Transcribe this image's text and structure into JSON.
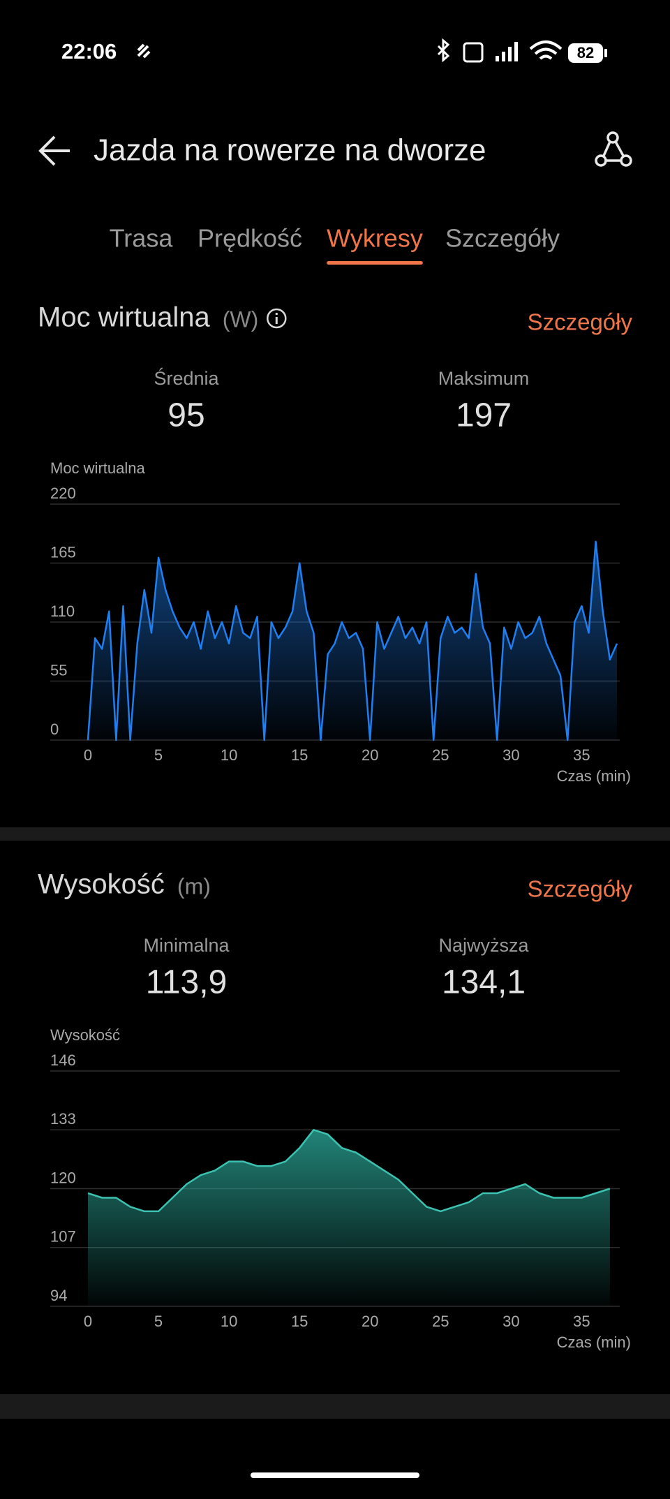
{
  "status_bar": {
    "time": "22:06",
    "battery": "82"
  },
  "header": {
    "title": "Jazda na rowerze na dworze"
  },
  "tabs": [
    "Trasa",
    "Prędkość",
    "Wykresy",
    "Szczegóły"
  ],
  "active_tab": 2,
  "sections": [
    {
      "title": "Moc wirtualna",
      "unit": "(W)",
      "link": "Szczegóły",
      "stats": [
        {
          "label": "Średnia",
          "value": "95"
        },
        {
          "label": "Maksimum",
          "value": "197"
        }
      ],
      "chart": {
        "type": "area",
        "ylabel": "Moc wirtualna",
        "xlabel": "Czas (min)",
        "color": "#1f7ff0",
        "x": [
          0,
          0.5,
          1,
          1.5,
          2,
          2.5,
          3,
          3.5,
          4,
          4.5,
          5,
          5.5,
          6,
          6.5,
          7,
          7.5,
          8,
          8.5,
          9,
          9.5,
          10,
          10.5,
          11,
          11.5,
          12,
          12.5,
          13,
          13.5,
          14,
          14.5,
          15,
          15.5,
          16,
          16.5,
          17,
          17.5,
          18,
          18.5,
          19,
          19.5,
          20,
          20.5,
          21,
          21.5,
          22,
          22.5,
          23,
          23.5,
          24,
          24.5,
          25,
          25.5,
          26,
          26.5,
          27,
          27.5,
          28,
          28.5,
          29,
          29.5,
          30,
          30.5,
          31,
          31.5,
          32,
          32.5,
          33,
          33.5,
          34,
          34.5,
          35,
          35.5,
          36,
          36.5,
          37,
          37.5
        ],
        "values": [
          0,
          95,
          85,
          120,
          0,
          125,
          0,
          90,
          140,
          100,
          170,
          140,
          120,
          105,
          95,
          110,
          85,
          120,
          95,
          110,
          90,
          125,
          100,
          95,
          115,
          0,
          110,
          95,
          105,
          120,
          165,
          120,
          100,
          0,
          80,
          90,
          110,
          95,
          100,
          85,
          0,
          110,
          85,
          100,
          115,
          95,
          105,
          90,
          110,
          0,
          95,
          115,
          100,
          105,
          95,
          155,
          105,
          90,
          0,
          105,
          85,
          110,
          95,
          100,
          115,
          90,
          75,
          60,
          0,
          110,
          125,
          100,
          185,
          120,
          75,
          90
        ],
        "xlim": [
          0,
          37.7
        ],
        "xticks": [
          0,
          5,
          10,
          15,
          20,
          25,
          30,
          35
        ],
        "ylim": [
          0,
          220
        ],
        "yticks": [
          0,
          55,
          110,
          165,
          220
        ],
        "grid": true
      }
    },
    {
      "title": "Wysokość",
      "unit": "(m)",
      "link": "Szczegóły",
      "stats": [
        {
          "label": "Minimalna",
          "value": "113,9"
        },
        {
          "label": "Najwyższa",
          "value": "134,1"
        }
      ],
      "chart": {
        "type": "area",
        "ylabel": "Wysokość",
        "xlabel": "Czas (min)",
        "color": "#3cc2b0",
        "x": [
          0,
          1,
          2,
          3,
          4,
          5,
          6,
          7,
          8,
          9,
          10,
          11,
          12,
          13,
          14,
          15,
          16,
          17,
          18,
          19,
          20,
          21,
          22,
          23,
          24,
          25,
          26,
          27,
          28,
          29,
          30,
          31,
          32,
          33,
          34,
          35,
          36,
          37
        ],
        "values": [
          119,
          118,
          118,
          116,
          115,
          115,
          118,
          121,
          123,
          124,
          126,
          126,
          125,
          125,
          126,
          129,
          133,
          132,
          129,
          128,
          126,
          124,
          122,
          119,
          116,
          115,
          116,
          117,
          119,
          119,
          120,
          121,
          119,
          118,
          118,
          118,
          119,
          120
        ],
        "xlim": [
          0,
          37.7
        ],
        "xticks": [
          0,
          5,
          10,
          15,
          20,
          25,
          30,
          35
        ],
        "ylim": [
          94,
          146
        ],
        "yticks": [
          94,
          107,
          120,
          133,
          146
        ],
        "grid": true
      }
    }
  ]
}
